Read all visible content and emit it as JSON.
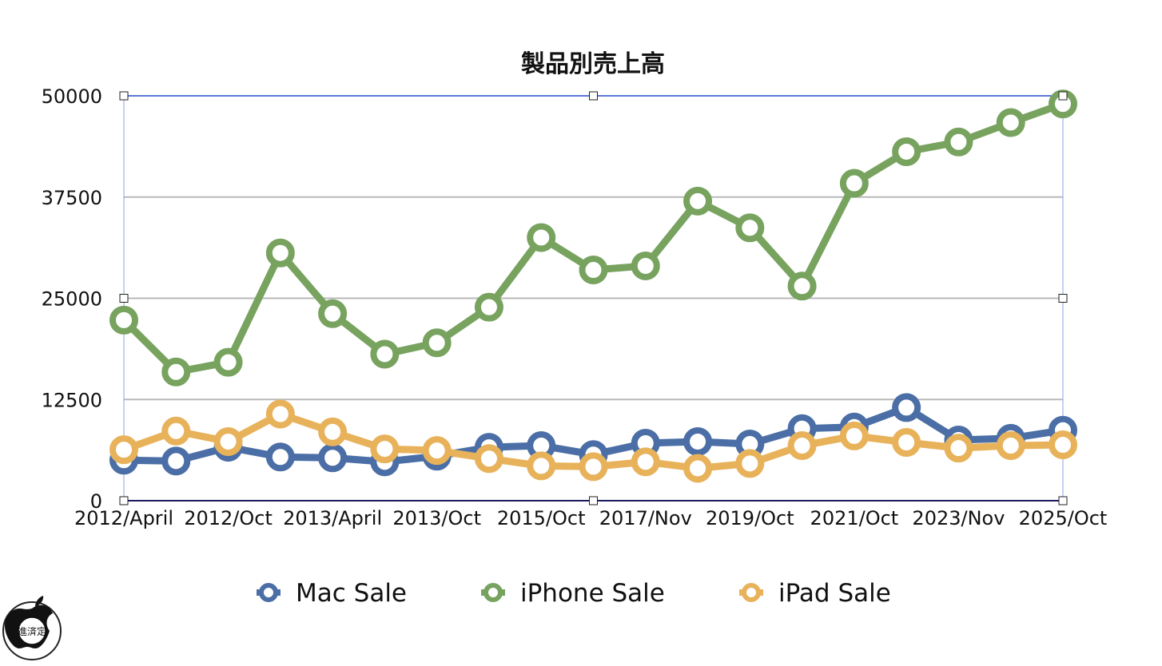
{
  "chart_data": {
    "type": "line",
    "title": "製品別売上高",
    "categories": [
      "2012/April",
      "",
      "2012/Oct",
      "",
      "2013/April",
      "",
      "2013/Oct",
      "",
      "2015/Oct",
      "",
      "2017/Nov",
      "",
      "2019/Oct",
      "",
      "2021/Oct",
      "",
      "2023/Nov",
      "",
      "2025/Oct"
    ],
    "x_tick_labels": [
      "2012/April",
      "2012/Oct",
      "2013/April",
      "2013/Oct",
      "2015/Oct",
      "2017/Nov",
      "2019/Oct",
      "2021/Oct",
      "2023/Nov",
      "2025/Oct"
    ],
    "y_ticks": [
      "0",
      "12500",
      "25000",
      "37500",
      "50000"
    ],
    "ylim": [
      0,
      50000
    ],
    "grid": true,
    "legend_position": "bottom",
    "series": [
      {
        "name": "Mac Sale",
        "color": "#4a6ea5",
        "values": [
          5000,
          4900,
          6600,
          5400,
          5300,
          4800,
          5500,
          6600,
          6800,
          5700,
          7100,
          7300,
          7000,
          8900,
          9100,
          11500,
          7500,
          7700,
          8700
        ]
      },
      {
        "name": "iPhone Sale",
        "color": "#77a35f",
        "values": [
          22300,
          15900,
          17100,
          30600,
          23100,
          18100,
          19500,
          23900,
          32500,
          28500,
          29000,
          37000,
          33700,
          26500,
          39200,
          43100,
          44300,
          46700,
          49000
        ]
      },
      {
        "name": "iPad Sale",
        "color": "#e8b25a",
        "values": [
          6300,
          8600,
          7300,
          10700,
          8500,
          6400,
          6200,
          5200,
          4300,
          4200,
          4800,
          4000,
          4600,
          6800,
          8000,
          7200,
          6500,
          6800,
          6900
        ]
      }
    ]
  },
  "watermark": {
    "text": "進済定",
    "icon": "apple-logo-icon"
  }
}
